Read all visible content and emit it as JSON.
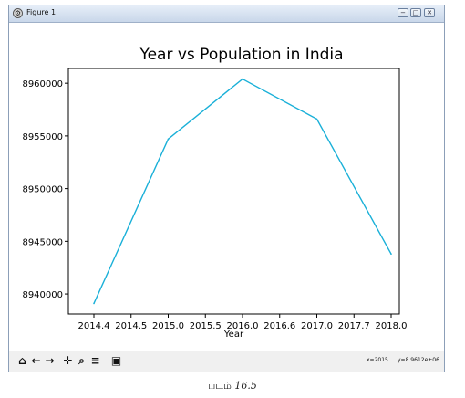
{
  "window": {
    "title": "Figure 1",
    "buttons": {
      "minimize": "−",
      "maximize": "□",
      "close": "✕"
    }
  },
  "chart_data": {
    "type": "line",
    "title": "Year vs Population in India",
    "xlabel": "Year",
    "ylabel": "",
    "x": [
      2014,
      2015,
      2016,
      2017,
      2018
    ],
    "series": [
      {
        "values": [
          8939100,
          8954700,
          8960400,
          8956600,
          8943800
        ],
        "color": "#1ab0d8"
      }
    ],
    "xlim": [
      2014,
      2018
    ],
    "ylim": [
      8938100,
      8961400
    ],
    "xticks": [
      "2014.4",
      "2014.5",
      "2015.0",
      "2015.5",
      "2016.0",
      "2016.6",
      "2017.0",
      "2017.7",
      "2018.0"
    ],
    "yticks": [
      {
        "value": 8940000,
        "label": "8940000"
      },
      {
        "value": 8945000,
        "label": "8945000"
      },
      {
        "value": 8950000,
        "label": "8950000"
      },
      {
        "value": 8955000,
        "label": "8955000"
      },
      {
        "value": 8960000,
        "label": "8960000"
      }
    ],
    "grid": false
  },
  "toolbar": {
    "items": [
      {
        "name": "home-icon",
        "glyph": "⌂"
      },
      {
        "name": "back-arrow-icon",
        "glyph": "←"
      },
      {
        "name": "forward-arrow-icon",
        "glyph": "→"
      },
      {
        "name": "pan-icon",
        "glyph": "✛"
      },
      {
        "name": "zoom-icon",
        "glyph": "⌕"
      },
      {
        "name": "subplots-config-icon",
        "glyph": "≡"
      },
      {
        "name": "save-icon",
        "glyph": "▣"
      }
    ],
    "coord_x": "x=2015",
    "coord_y": "y=8.9612e+06"
  },
  "caption": {
    "prefix": "படம்",
    "number": "16.5"
  }
}
